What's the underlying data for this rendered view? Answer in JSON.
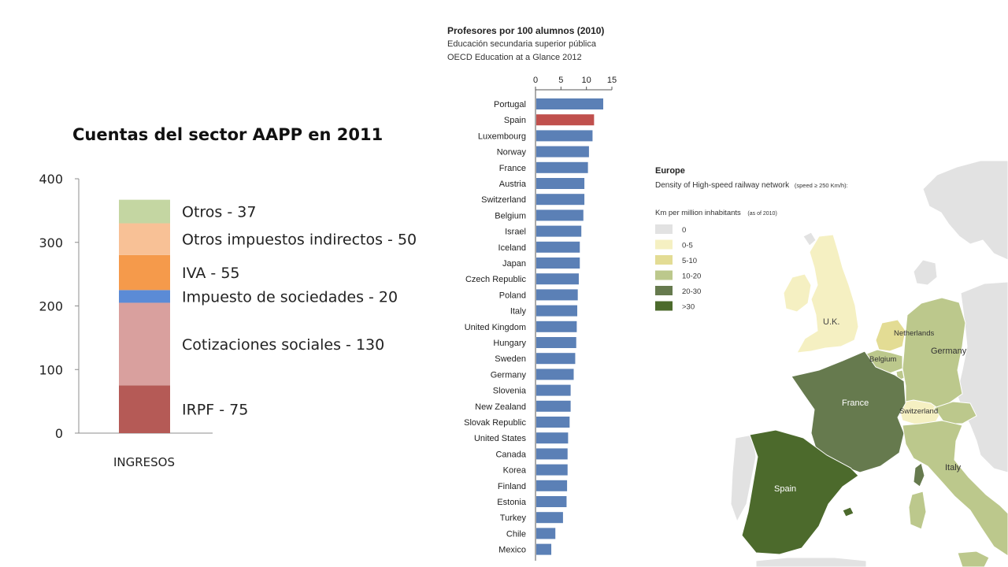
{
  "slide": {
    "left_chart": {
      "title": "Cuentas del sector AAPP en 2011",
      "category_label": "INGRESOS",
      "y_ticks": [
        "0",
        "100",
        "200",
        "300",
        "400"
      ],
      "segment_labels": [
        "IRPF - 75",
        "Cotizaciones sociales - 130",
        "Impuesto de sociedades - 20",
        "IVA - 55",
        "Otros impuestos indirectos - 50",
        "Otros - 37"
      ]
    },
    "middle_chart": {
      "title": "Profesores por 100 alumnos (2010)",
      "subtitle_1": "Educación secundaria superior pública",
      "subtitle_2": "OECD Education at a Glance 2012",
      "x_ticks": [
        "0",
        "5",
        "10",
        "15"
      ]
    },
    "map": {
      "title": "Europe",
      "subtitle_main": "Density of High-speed railway network",
      "subtitle_note": "(speed ≥ 250 Km/h):",
      "legend_title": "Km per million inhabitants",
      "legend_note": "(as of 2010)",
      "legend_items": [
        {
          "label": "0",
          "color": "#e2e2e2"
        },
        {
          "label": "0-5",
          "color": "#f5f0c2"
        },
        {
          "label": "5-10",
          "color": "#e3dc94"
        },
        {
          "label": "10-20",
          "color": "#bcc88c"
        },
        {
          "label": "20-30",
          "color": "#667a4e"
        },
        {
          "label": ">30",
          "color": "#4c6a2c"
        }
      ],
      "country_labels": [
        "U.K.",
        "Netherlands",
        "Germany",
        "Belgium",
        "France",
        "Switzerland",
        "Italy",
        "Spain"
      ]
    }
  },
  "chart_data": [
    {
      "type": "bar",
      "stacked": true,
      "title": "Cuentas del sector AAPP en 2011",
      "categories": [
        "INGRESOS"
      ],
      "series": [
        {
          "name": "IRPF",
          "values": [
            75
          ],
          "color": "#b55a56"
        },
        {
          "name": "Cotizaciones sociales",
          "values": [
            130
          ],
          "color": "#d9a09e"
        },
        {
          "name": "Impuesto de sociedades",
          "values": [
            20
          ],
          "color": "#5b8bd6"
        },
        {
          "name": "IVA",
          "values": [
            55
          ],
          "color": "#f59a4b"
        },
        {
          "name": "Otros impuestos indirectos",
          "values": [
            50
          ],
          "color": "#f8c196"
        },
        {
          "name": "Otros",
          "values": [
            37
          ],
          "color": "#c4d6a2"
        }
      ],
      "ylim": [
        0,
        400
      ],
      "grid": false
    },
    {
      "type": "bar",
      "orientation": "horizontal",
      "title": "Profesores por 100 alumnos (2010)",
      "categories": [
        "Portugal",
        "Spain",
        "Luxembourg",
        "Norway",
        "France",
        "Austria",
        "Switzerland",
        "Belgium",
        "Israel",
        "Iceland",
        "Japan",
        "Czech Republic",
        "Poland",
        "Italy",
        "United Kingdom",
        "Hungary",
        "Sweden",
        "Germany",
        "Slovenia",
        "New Zealand",
        "Slovak Republic",
        "United States",
        "Canada",
        "Korea",
        "Finland",
        "Estonia",
        "Turkey",
        "Chile",
        "Mexico"
      ],
      "values": [
        13.3,
        11.5,
        11.2,
        10.5,
        10.3,
        9.6,
        9.6,
        9.4,
        9.0,
        8.7,
        8.7,
        8.5,
        8.3,
        8.2,
        8.1,
        8.0,
        7.8,
        7.5,
        6.9,
        6.9,
        6.7,
        6.4,
        6.3,
        6.3,
        6.2,
        6.1,
        5.4,
        3.9,
        3.1
      ],
      "highlight": "Spain",
      "bar_color": "#5b80b6",
      "highlight_color": "#c0504d",
      "xlim": [
        0,
        15
      ],
      "grid": false
    }
  ]
}
